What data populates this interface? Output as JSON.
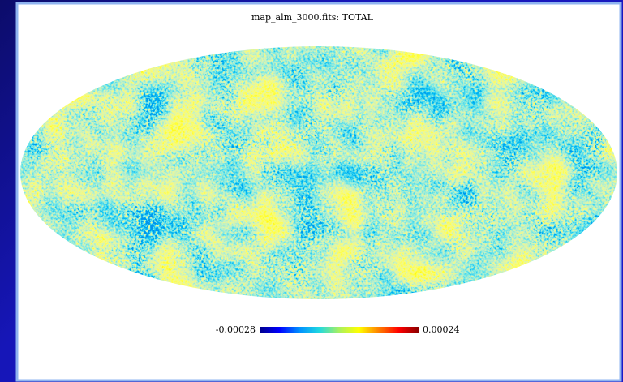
{
  "chart_data": {
    "type": "mollweide-map",
    "title": "map_alm_3000.fits: TOTAL",
    "colorbar": {
      "lim": [
        -0.00028,
        0.00024
      ],
      "ticks": [
        -0.00028,
        0.00024
      ],
      "colors": [
        "#00008b",
        "#0000ff",
        "#0090ff",
        "#20d8e0",
        "#a8f060",
        "#ffff00",
        "#ff8000",
        "#ff0000",
        "#8b0000"
      ]
    }
  }
}
